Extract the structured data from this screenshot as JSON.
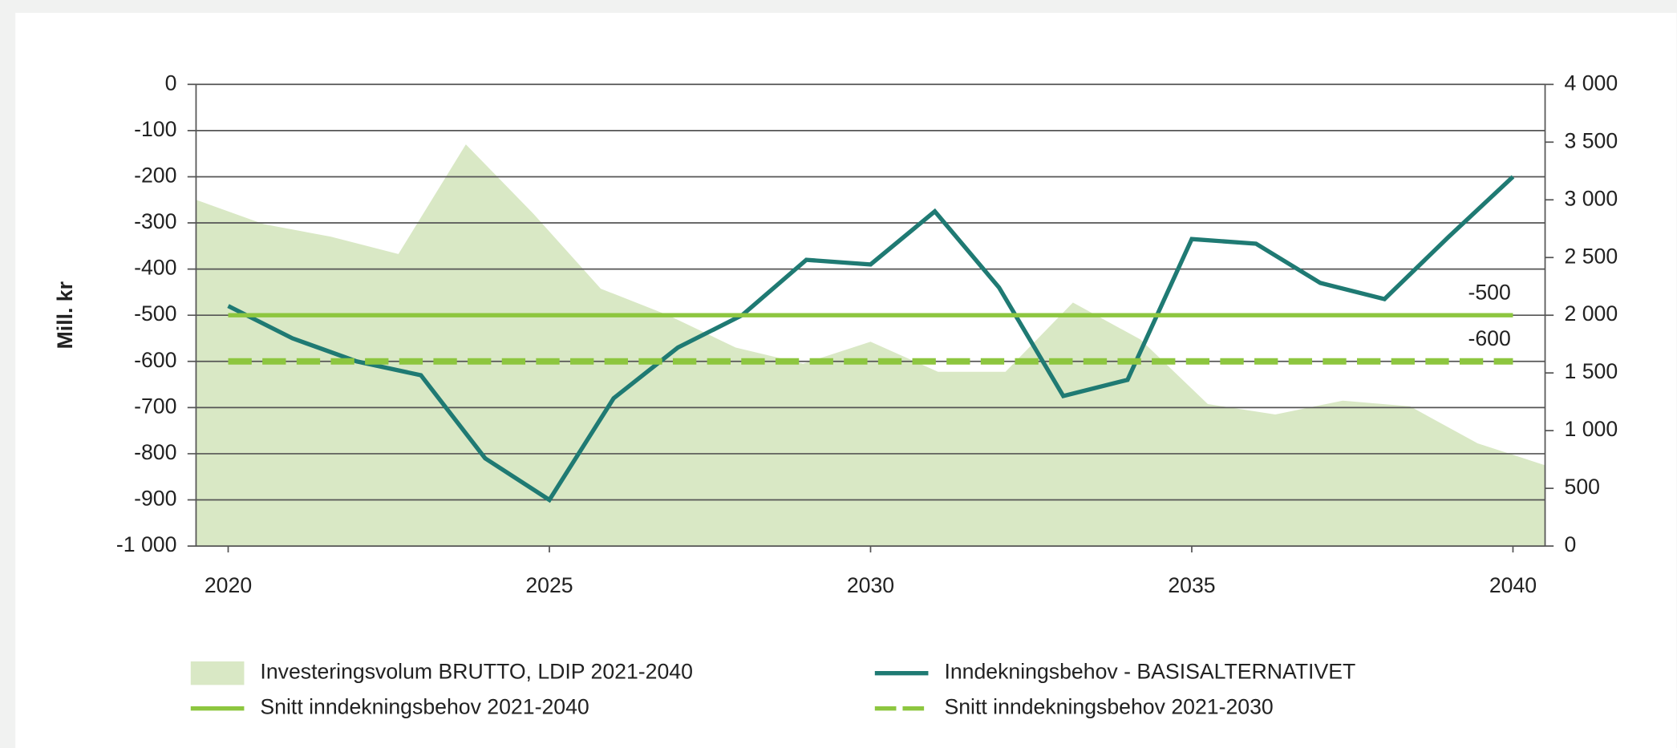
{
  "chart_data": {
    "type": "combo",
    "y_axis_label": "Mill. kr",
    "xlim": [
      2019.5,
      2040.5
    ],
    "xticks": [
      2020,
      2025,
      2030,
      2035,
      2040
    ],
    "ylim": [
      -1000,
      0
    ],
    "yticks": [
      0,
      -100,
      -200,
      -300,
      -400,
      -500,
      -600,
      -700,
      -800,
      -900,
      {
        "value": -1000,
        "label": "-1 000"
      }
    ],
    "y2lim": [
      0,
      4000
    ],
    "y2ticks": [
      0,
      500,
      {
        "value": 1000,
        "label": "1 000"
      },
      {
        "value": 1500,
        "label": "1 500"
      },
      {
        "value": 2000,
        "label": "2 000"
      },
      {
        "value": 2500,
        "label": "2 500"
      },
      {
        "value": 3000,
        "label": "3 000"
      },
      {
        "value": 3500,
        "label": "3 500"
      },
      {
        "value": 4000,
        "label": "4 000"
      }
    ],
    "grid": true,
    "series": [
      {
        "name": "Investeringsvolum BRUTTO, LDIP 2021-2040",
        "kind": "area",
        "axis": "y2",
        "color": "#d9e8c5",
        "x": [
          2019.5,
          2020.55,
          2021.6,
          2022.65,
          2023.7,
          2024.75,
          2025.8,
          2026.85,
          2027.9,
          2028.95,
          2030.0,
          2031.05,
          2032.1,
          2033.15,
          2034.2,
          2035.25,
          2036.3,
          2037.35,
          2038.4,
          2039.45,
          2040.5
        ],
        "values": [
          3000,
          2790,
          2680,
          2530,
          3480,
          2880,
          2230,
          2000,
          1720,
          1580,
          1770,
          1510,
          1510,
          2110,
          1790,
          1230,
          1140,
          1260,
          1210,
          890,
          700
        ]
      },
      {
        "name": "Inndekningsbehov - BASISALTERNATIVET",
        "kind": "line",
        "color": "#1f7a73",
        "x": [
          2020,
          2021,
          2022,
          2023,
          2024,
          2025,
          2026,
          2027,
          2028,
          2029,
          2030,
          2031,
          2032,
          2033,
          2034,
          2035,
          2036,
          2037,
          2038,
          2039,
          2040
        ],
        "values": [
          -480,
          -550,
          -600,
          -630,
          -810,
          -900,
          -680,
          -570,
          -500,
          -380,
          -390,
          -275,
          -440,
          -675,
          -640,
          -335,
          -345,
          -430,
          -465,
          -330,
          -200
        ]
      },
      {
        "name": "Snitt inndekningsbehov 2021-2040",
        "kind": "line",
        "color": "#8dc63f",
        "x": [
          2020,
          2040
        ],
        "values": [
          -500,
          -500
        ]
      },
      {
        "name": "Snitt inndekningsbehov 2021-2030",
        "kind": "dashed",
        "color": "#8dc63f",
        "x": [
          2020,
          2040
        ],
        "values": [
          -600,
          -600
        ]
      }
    ]
  }
}
